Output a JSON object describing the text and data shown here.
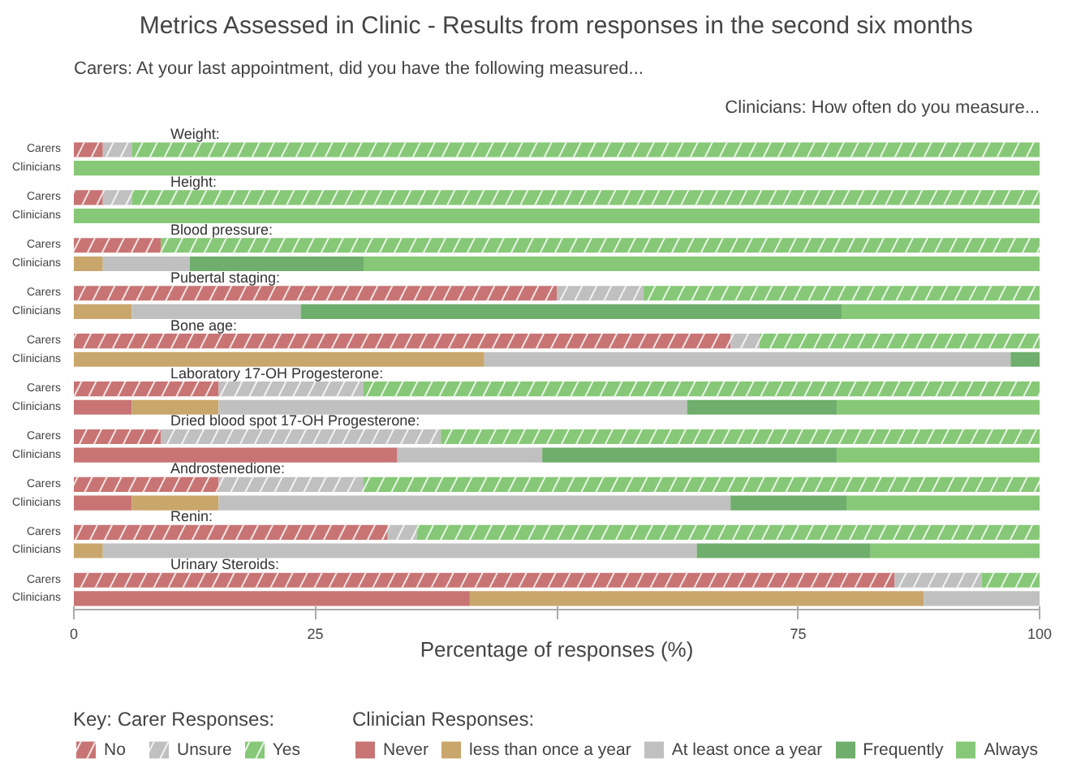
{
  "chart_data": {
    "type": "bar",
    "orientation": "horizontal",
    "stacked": true,
    "title": "Metrics Assessed in Clinic - Results from responses in the second six months",
    "subtitle": "Carers: At your last appointment, did you have the following measured...",
    "xlabel": "Percentage of responses (%)",
    "legend_title": "Key: Carer Responses:",
    "legend": "bottom",
    "categories": [
      "Carers",
      "Clinicians",
      "Carers",
      "Clinicians",
      "Carers",
      "Clinicians",
      "Carers",
      "Clinicians",
      "Carers",
      "Clinicians",
      "Carers",
      "Clinicians",
      "Carers",
      "Clinicians",
      "Carers",
      "Clinicians",
      "Carers",
      "Clinicians",
      "Carers",
      "Clinicians"
    ],
    "annotations": [
      "Weight:",
      "Height:",
      "Blood pressure:",
      "Pubertal staging:",
      "Bone age:",
      "Laboratory 17-OH Progesterone:",
      "Dried blood spot 17-OH Progesterone:",
      "Androstenedione:",
      "Renin:",
      "Urinary Steroids:",
      "Clinicians: How often do you measure...",
      "Clinician Responses:"
    ],
    "xlim": [
      0,
      100
    ],
    "xticks": [
      0,
      25,
      {
        "value": 50,
        "label": null
      },
      75,
      100
    ],
    "series": [
      {
        "name": "No",
        "color": "#c87474",
        "values": [
          3,
          null,
          3,
          null,
          9,
          null,
          50,
          null,
          68,
          null,
          15,
          null,
          9,
          null,
          15,
          null,
          32.5,
          null,
          85,
          null
        ]
      },
      {
        "name": "Unsure",
        "color": "#c0c0c0",
        "values": [
          3,
          null,
          3,
          null,
          0,
          null,
          9,
          null,
          3,
          null,
          15,
          null,
          29,
          null,
          15,
          null,
          3,
          null,
          9,
          null
        ]
      },
      {
        "name": "Yes",
        "color": "#86c877",
        "values": [
          94,
          null,
          94,
          null,
          91,
          null,
          41,
          null,
          29,
          null,
          70,
          null,
          62,
          null,
          70,
          null,
          64.5,
          null,
          6,
          null
        ]
      },
      {
        "name": "Never",
        "color": "#c87474",
        "values": [
          null,
          0,
          null,
          0,
          null,
          0,
          null,
          0,
          null,
          0,
          null,
          6,
          null,
          33.5,
          null,
          6,
          null,
          0,
          null,
          41
        ]
      },
      {
        "name": "less than once a year",
        "color": "#c9a66b",
        "values": [
          null,
          0,
          null,
          0,
          null,
          3,
          null,
          6,
          null,
          42.5,
          null,
          9,
          null,
          0,
          null,
          9,
          null,
          3,
          null,
          47
        ]
      },
      {
        "name": "At least once a year",
        "color": "#c0c0c0",
        "values": [
          null,
          0,
          null,
          0,
          null,
          9,
          null,
          17.5,
          null,
          54.5,
          null,
          48.5,
          null,
          15,
          null,
          53,
          null,
          61.5,
          null,
          12
        ]
      },
      {
        "name": "Frequently",
        "color": "#6fae6c",
        "values": [
          null,
          0,
          null,
          0,
          null,
          18,
          null,
          56,
          null,
          3,
          null,
          15.5,
          null,
          30.5,
          null,
          12,
          null,
          18,
          null,
          0
        ]
      },
      {
        "name": "Always",
        "color": "#86c877",
        "values": [
          null,
          100,
          null,
          100,
          null,
          70,
          null,
          20.5,
          null,
          0,
          null,
          21,
          null,
          21,
          null,
          20,
          null,
          17.5,
          null,
          0
        ]
      }
    ]
  }
}
